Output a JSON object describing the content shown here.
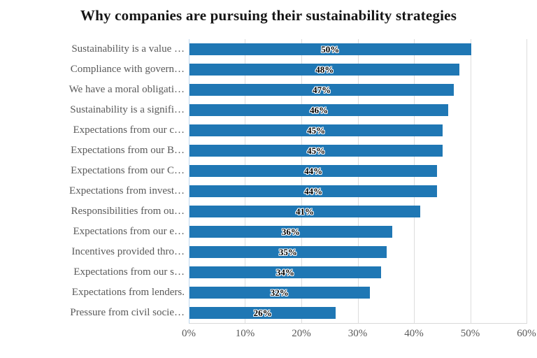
{
  "title": "Why companies are pursuing their sustainability strategies",
  "colors": {
    "bar": "#1F77B4",
    "axis_text": "#595959",
    "title_text": "#161616",
    "gridline": "#DCDCDC",
    "zero_axis_line": "#BDD7EE",
    "data_label_fill": "#000000",
    "data_label_outline": "#FFFFFF",
    "background": "#FFFFFF"
  },
  "chart_data": {
    "type": "bar",
    "orientation": "horizontal",
    "title": "Why companies are pursuing their sustainability strategies",
    "categories": [
      "Sustainability is a value …",
      "Compliance with govern…",
      "We have a moral obligati…",
      "Sustainability is a signifi…",
      "Expectations from our c…",
      "Expectations from our B…",
      "Expectations from our C…",
      "Expectations from invest…",
      "Responsibilities from ou…",
      "Expectations from our e…",
      "Incentives provided thro…",
      "Expectations from our s…",
      "Expectations from lenders.",
      "Pressure from civil socie…"
    ],
    "values": [
      50,
      48,
      47,
      46,
      45,
      45,
      44,
      44,
      41,
      36,
      35,
      34,
      32,
      26
    ],
    "data_labels": [
      "50%",
      "48%",
      "47%",
      "46%",
      "45%",
      "45%",
      "44%",
      "44%",
      "41%",
      "36%",
      "35%",
      "34%",
      "32%",
      "26%"
    ],
    "x_ticks": [
      "0%",
      "10%",
      "20%",
      "30%",
      "40%",
      "50%",
      "60%"
    ],
    "xlim": [
      0,
      60
    ],
    "xlabel": "",
    "ylabel": "",
    "grid": "vertical",
    "legend": "none"
  }
}
